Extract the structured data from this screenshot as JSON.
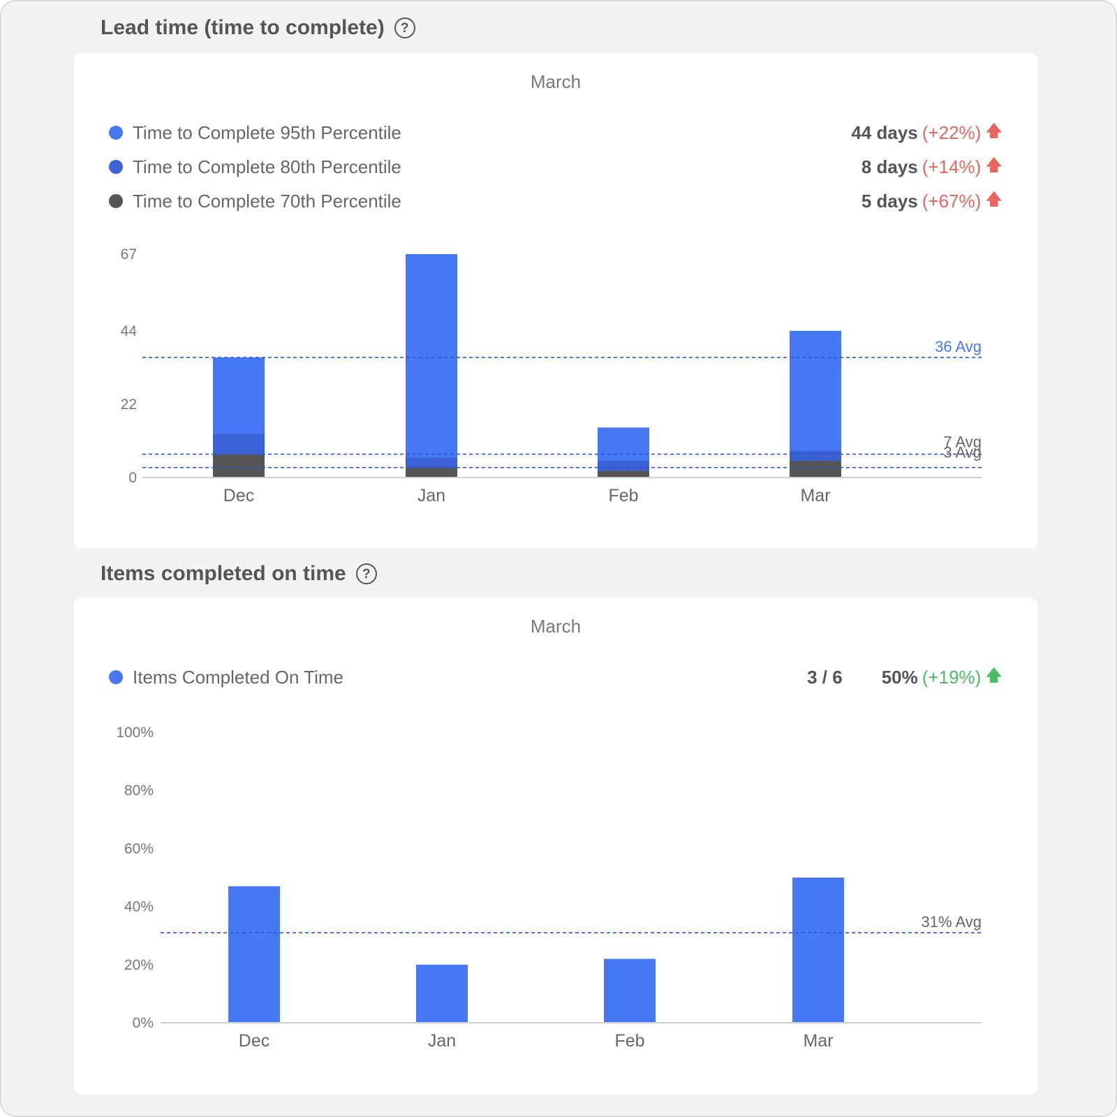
{
  "lead_time": {
    "title": "Lead time (time to complete)",
    "help_icon": "question-circle-icon",
    "period": "March",
    "legend": [
      {
        "label": "Time to Complete 95th Percentile",
        "color": "#4678f5",
        "value": "44 days",
        "delta": "(+22%)",
        "arrow": "arrow-up-icon"
      },
      {
        "label": "Time to Complete 80th Percentile",
        "color": "#3a62d6",
        "value": "8 days",
        "delta": "(+14%)",
        "arrow": "arrow-up-icon"
      },
      {
        "label": "Time to Complete 70th Percentile",
        "color": "#555555",
        "value": "5 days",
        "delta": "(+67%)",
        "arrow": "arrow-up-icon"
      }
    ]
  },
  "on_time": {
    "title": "Items completed on time",
    "help_icon": "question-circle-icon",
    "period": "March",
    "legend": [
      {
        "label": "Items Completed On Time",
        "color": "#4678f5",
        "ratio": "3 / 6",
        "value": "50%",
        "delta": "(+19%)",
        "arrow": "arrow-up-icon"
      }
    ]
  },
  "chart_data": [
    {
      "type": "bar",
      "stacked": false,
      "categories": [
        "Dec",
        "Jan",
        "Feb",
        "Mar"
      ],
      "series": [
        {
          "name": "Time to Complete 95th Percentile",
          "color": "#4678f5",
          "values": [
            36,
            67,
            15,
            44
          ]
        },
        {
          "name": "Time to Complete 80th Percentile",
          "color": "#3a62d6",
          "values": [
            13,
            6,
            5,
            8
          ]
        },
        {
          "name": "Time to Complete 70th Percentile",
          "color": "#555555",
          "values": [
            7,
            3,
            2,
            5
          ]
        }
      ],
      "ylim": [
        0,
        67
      ],
      "yticks": [
        {
          "value": 0,
          "label": "0"
        },
        {
          "value": 22,
          "label": "22"
        },
        {
          "value": 44,
          "label": "44"
        },
        {
          "value": 67,
          "label": "67"
        }
      ],
      "reference_lines": [
        {
          "value": 36,
          "label": "36 Avg",
          "color": "#4678f5"
        },
        {
          "value": 7,
          "label": "7 Avg",
          "color": "#666666"
        },
        {
          "value": 3,
          "label": "3 Avg",
          "color": "#666666"
        }
      ],
      "grid": false
    },
    {
      "type": "bar",
      "categories": [
        "Dec",
        "Jan",
        "Feb",
        "Mar"
      ],
      "series": [
        {
          "name": "Items Completed On Time",
          "color": "#4678f5",
          "values": [
            47,
            20,
            22,
            50
          ]
        }
      ],
      "ylim": [
        0,
        100
      ],
      "yticks": [
        {
          "value": 0,
          "label": "0%"
        },
        {
          "value": 20,
          "label": "20%"
        },
        {
          "value": 40,
          "label": "40%"
        },
        {
          "value": 60,
          "label": "60%"
        },
        {
          "value": 80,
          "label": "80%"
        },
        {
          "value": 100,
          "label": "100%"
        }
      ],
      "reference_lines": [
        {
          "value": 31,
          "label": "31% Avg",
          "color": "#666666"
        }
      ],
      "grid": false
    }
  ]
}
